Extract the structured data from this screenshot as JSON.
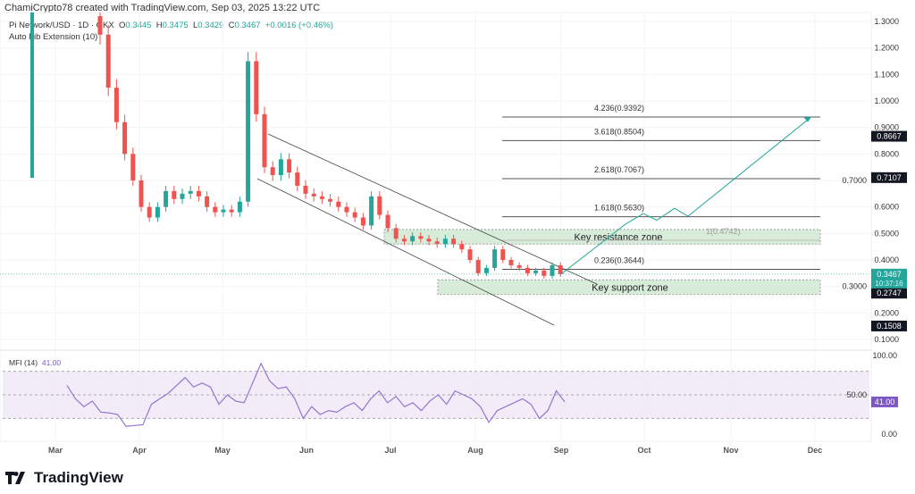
{
  "header": {
    "credit": "ChamiCrypto78 created with TradingView.com, Sep 03, 2025 13:22 UTC"
  },
  "legend": {
    "symbol": "Pi Network/USD · 1D · OKX",
    "o_label": "O",
    "o": "0.3445",
    "h_label": "H",
    "h": "0.3475",
    "l_label": "L",
    "l": "0.3429",
    "c_label": "C",
    "c": "0.3467",
    "change": "+0.0016 (+0.46%)",
    "indicator": "Auto Fib Extension (10)"
  },
  "mfi_legend": {
    "name": "MFI (14)",
    "value": "41.00"
  },
  "logo": {
    "text": "TradingView"
  },
  "colors": {
    "up": "#26a69a",
    "down": "#ef5350",
    "mfi": "#7e57c2",
    "zone": "#c8e6c9",
    "arrow": "#26a69a"
  },
  "chart_data": {
    "type": "candlestick",
    "title": "Pi Network/USD · 1D · OKX",
    "price_axis": {
      "ylim": [
        0.1,
        1.3
      ],
      "ticks": [
        "1.3000",
        "1.2000",
        "1.1000",
        "1.0000",
        "0.9000",
        "0.8000",
        "0.7000",
        "0.6000",
        "0.5000",
        "0.4000",
        "0.3000",
        "0.2000",
        "0.1000"
      ]
    },
    "x_ticks": [
      "Mar",
      "Apr",
      "May",
      "Jun",
      "Jul",
      "Aug",
      "Sep",
      "Oct",
      "Nov",
      "Dec"
    ],
    "candle_closes_3day_from_mar15": [
      1.25,
      1.05,
      0.92,
      0.8,
      0.7,
      0.6,
      0.56,
      0.6,
      0.66,
      0.63,
      0.65,
      0.66,
      0.64,
      0.6,
      0.58,
      0.59,
      0.58,
      0.62,
      1.15,
      0.95,
      0.75,
      0.72,
      0.78,
      0.73,
      0.68,
      0.65,
      0.64,
      0.63,
      0.62,
      0.6,
      0.58,
      0.56,
      0.53,
      0.64,
      0.57,
      0.52,
      0.48,
      0.47,
      0.49,
      0.48,
      0.47,
      0.46,
      0.48,
      0.46,
      0.44,
      0.4,
      0.35,
      0.37,
      0.44,
      0.4,
      0.38,
      0.37,
      0.35,
      0.36,
      0.34,
      0.38,
      0.3467
    ],
    "first_open": 1.32,
    "fib_levels": [
      {
        "label": "4.236(0.9392)",
        "price": 0.9392
      },
      {
        "label": "3.618(0.8504)",
        "price": 0.8504
      },
      {
        "label": "2.618(0.7067)",
        "price": 0.7067
      },
      {
        "label": "1.618(0.5630)",
        "price": 0.563
      },
      {
        "label": "1(0.4742)",
        "price": 0.4742
      },
      {
        "label": "0.236(0.3644)",
        "price": 0.3644
      }
    ],
    "zones": [
      {
        "label": "Key resistance zone",
        "from": 0.46,
        "to": 0.515
      },
      {
        "label": "Key support zone",
        "from": 0.27,
        "to": 0.325
      }
    ],
    "price_tags": [
      {
        "value": "0.8667",
        "price": 0.8667,
        "style": "dark"
      },
      {
        "value": "0.7107",
        "price": 0.7107,
        "style": "dark"
      },
      {
        "value": "0.2747",
        "price": 0.2747,
        "style": "dark"
      },
      {
        "value": "0.1508",
        "price": 0.1508,
        "style": "dark"
      }
    ],
    "current_price": {
      "value": "0.3467",
      "countdown": "10:37:16",
      "price": 0.3467
    },
    "projection_prices": [
      0.3467,
      0.535,
      0.575,
      0.55,
      0.595,
      0.565,
      0.94
    ],
    "mfi": {
      "ylim": [
        0,
        100
      ],
      "ticks": [
        "100.00",
        "50.00",
        "0.00"
      ],
      "bands": [
        20,
        50,
        80
      ],
      "current": "41.00",
      "values": [
        62,
        45,
        35,
        42,
        28,
        27,
        25,
        10,
        11,
        12,
        38,
        45,
        52,
        62,
        72,
        60,
        65,
        60,
        38,
        50,
        42,
        40,
        65,
        90,
        68,
        58,
        60,
        45,
        20,
        35,
        25,
        30,
        28,
        35,
        40,
        30,
        45,
        55,
        40,
        48,
        35,
        40,
        30,
        42,
        50,
        38,
        55,
        50,
        45,
        35,
        15,
        30,
        35,
        40,
        45,
        38,
        20,
        30,
        55,
        41
      ]
    }
  }
}
